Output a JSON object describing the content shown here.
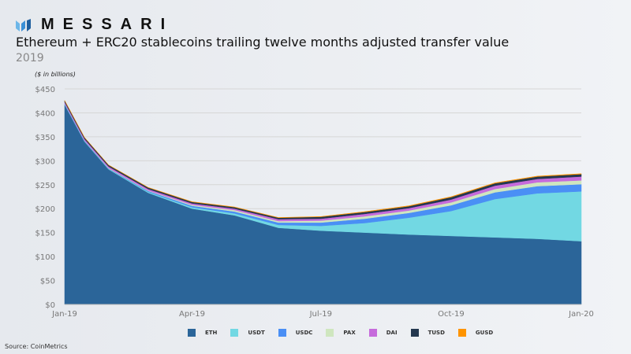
{
  "brand": {
    "name": "MESSARI"
  },
  "header": {
    "title": "Ethereum + ERC20 stablecoins trailing twelve months adjusted transfer value",
    "subtitle": "2019",
    "unit_note": "($ in billions)"
  },
  "footer": {
    "source": "Source: CoinMetrics"
  },
  "chart_data": {
    "type": "area",
    "stacked": true,
    "title": "Ethereum + ERC20 stablecoins trailing twelve months adjusted transfer value",
    "ylabel": "($ in billions)",
    "ylim": [
      0,
      450
    ],
    "y_ticks": [
      "$0",
      "$50",
      "$100",
      "$150",
      "$200",
      "$250",
      "$300",
      "$350",
      "$400",
      "$450"
    ],
    "y_tick_values": [
      0,
      50,
      100,
      150,
      200,
      250,
      300,
      350,
      400,
      450
    ],
    "x_ticks": [
      "Jan-19",
      "Apr-19",
      "Jul-19",
      "Oct-19",
      "Jan-20"
    ],
    "x_tick_dates": [
      "2019-01-01",
      "2019-04-01",
      "2019-07-01",
      "2019-10-01",
      "2020-01-01"
    ],
    "xlim": [
      "2019-01-01",
      "2020-01-01"
    ],
    "grid": "horizontal",
    "legend_position": "bottom",
    "x": [
      "2019-01-01",
      "2019-01-15",
      "2019-02-01",
      "2019-03-01",
      "2019-04-01",
      "2019-05-01",
      "2019-06-01",
      "2019-07-01",
      "2019-08-01",
      "2019-09-01",
      "2019-10-01",
      "2019-11-01",
      "2019-12-01",
      "2020-01-01"
    ],
    "series": [
      {
        "name": "ETH",
        "color": "#2b6599",
        "values": [
          417,
          340,
          282,
          233,
          200,
          186,
          160,
          154,
          150,
          146,
          143,
          140,
          137,
          132
        ]
      },
      {
        "name": "USDT",
        "color": "#72d8e3",
        "values": [
          1,
          1,
          1,
          2,
          3,
          4,
          6,
          10,
          20,
          35,
          52,
          80,
          95,
          104
        ]
      },
      {
        "name": "USDC",
        "color": "#4a8ff5",
        "values": [
          1,
          1,
          1,
          2,
          3,
          4,
          5,
          7,
          9,
          10,
          12,
          14,
          15,
          15
        ]
      },
      {
        "name": "PAX",
        "color": "#cfe6bf",
        "values": [
          0.5,
          0.5,
          1,
          1,
          2,
          3,
          3,
          4,
          5,
          5,
          6,
          7,
          8,
          8
        ]
      },
      {
        "name": "DAI",
        "color": "#c66bdc",
        "values": [
          3,
          3,
          3,
          3,
          3,
          3,
          4,
          4,
          5,
          5,
          6,
          7,
          7,
          8
        ]
      },
      {
        "name": "TUSD",
        "color": "#24384f",
        "values": [
          3,
          3,
          3,
          3,
          3,
          3,
          3,
          4,
          4,
          4,
          5,
          5,
          5,
          5
        ]
      },
      {
        "name": "GUSD",
        "color": "#ff9400",
        "values": [
          0.2,
          0.2,
          0.3,
          0.3,
          0.5,
          0.5,
          0.5,
          0.5,
          0.8,
          1,
          1,
          1,
          1,
          1
        ]
      }
    ]
  }
}
